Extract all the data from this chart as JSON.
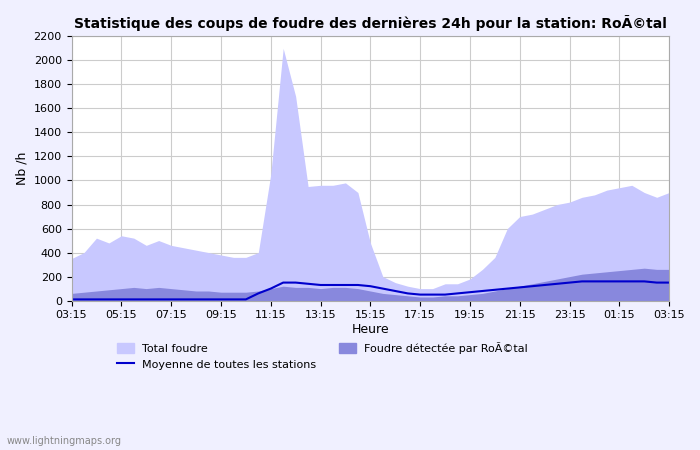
{
  "title": "Statistique des coups de foudre des dernières 24h pour la station: RoÃ©tal",
  "xlabel": "Heure",
  "ylabel": "Nb /h",
  "ylim": [
    0,
    2200
  ],
  "yticks": [
    0,
    200,
    400,
    600,
    800,
    1000,
    1200,
    1400,
    1600,
    1800,
    2000,
    2200
  ],
  "xtick_labels": [
    "03:15",
    "05:15",
    "07:15",
    "09:15",
    "11:15",
    "13:15",
    "15:15",
    "17:15",
    "19:15",
    "21:15",
    "23:15",
    "01:15",
    "03:15"
  ],
  "watermark": "www.lightningmaps.org",
  "legend": [
    {
      "label": "Total foudre",
      "color": "#c8c8ff",
      "type": "fill"
    },
    {
      "label": "Moyenne de toutes les stations",
      "color": "#0000cc",
      "type": "line"
    },
    {
      "label": "Foudre détectée par RoÃ©tal",
      "color": "#8888dd",
      "type": "fill"
    }
  ],
  "bg_color": "#f0f0ff",
  "plot_bg": "#ffffff",
  "grid_color": "#cccccc",
  "total_foudre": [
    350,
    400,
    520,
    480,
    540,
    520,
    460,
    500,
    460,
    440,
    420,
    400,
    380,
    360,
    360,
    400,
    1050,
    2100,
    1700,
    950,
    960,
    960,
    980,
    900,
    480,
    200,
    150,
    120,
    100,
    100,
    140,
    140,
    180,
    260,
    360,
    600,
    700,
    720,
    760,
    800,
    820,
    860,
    880,
    920,
    940,
    960,
    900,
    860,
    900
  ],
  "foudre_detectee": [
    60,
    70,
    80,
    90,
    100,
    110,
    100,
    110,
    100,
    90,
    80,
    80,
    70,
    70,
    70,
    80,
    100,
    120,
    110,
    110,
    100,
    110,
    110,
    100,
    80,
    60,
    50,
    40,
    30,
    30,
    40,
    40,
    50,
    60,
    80,
    100,
    120,
    140,
    160,
    180,
    200,
    220,
    230,
    240,
    250,
    260,
    270,
    260,
    260
  ],
  "moyenne": [
    10,
    10,
    10,
    10,
    10,
    10,
    10,
    10,
    10,
    10,
    10,
    10,
    10,
    10,
    10,
    60,
    100,
    150,
    150,
    140,
    130,
    130,
    130,
    130,
    120,
    100,
    80,
    60,
    50,
    50,
    50,
    60,
    70,
    80,
    90,
    100,
    110,
    120,
    130,
    140,
    150,
    160,
    160,
    160,
    160,
    160,
    160,
    150,
    150
  ],
  "n_points": 49
}
